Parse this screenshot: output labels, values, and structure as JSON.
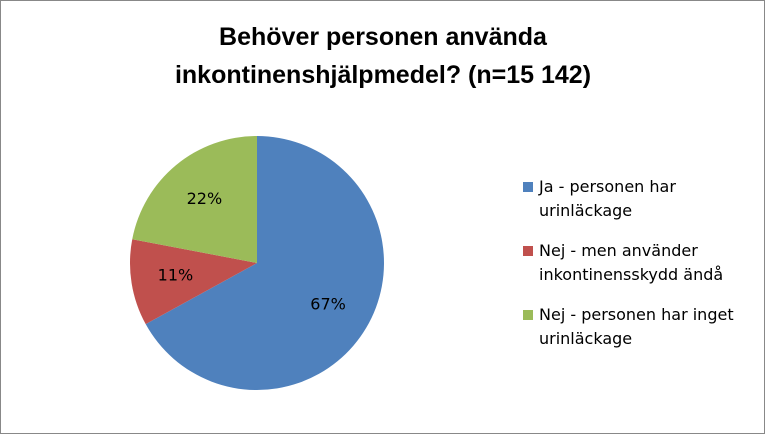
{
  "chart_data": {
    "type": "pie",
    "title": [
      "Behöver personen använda",
      "inkontinenshjälpmedel? (n=15 142)"
    ],
    "categories": [
      "Ja - personen har urinläckage",
      "Nej - men använder inkontinensskydd ändå",
      "Nej - personen har inget urinläckage"
    ],
    "values": [
      67,
      11,
      22
    ],
    "value_labels": [
      "67%",
      "11%",
      "22%"
    ],
    "colors": [
      "#4f81bd",
      "#c0504d",
      "#9bbb59"
    ],
    "legend": "right"
  }
}
